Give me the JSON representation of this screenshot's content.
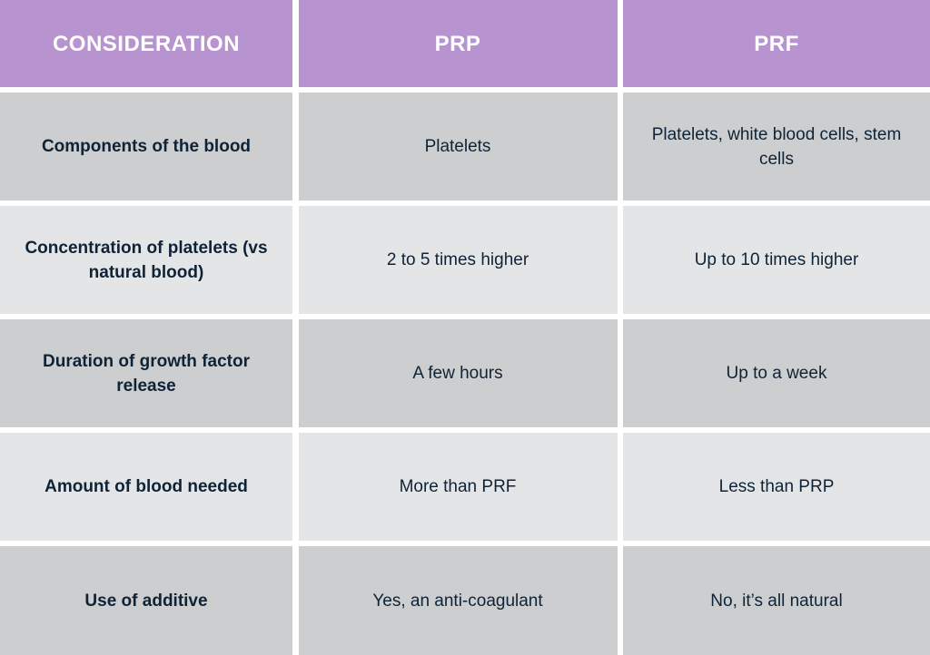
{
  "header": {
    "columns": [
      "CONSIDERATION",
      "PRP",
      "PRF"
    ]
  },
  "colors": {
    "header_bg": "#b793d0",
    "header_text": "#ffffff",
    "row_dark_bg": "#cdcecf",
    "row_light_bg": "#e4e5e7",
    "body_text": "#0f2337",
    "grid_lines": "#ffffff"
  },
  "rows": [
    {
      "consideration": "Components of the blood",
      "prp": "Platelets",
      "prf": "Platelets, white blood cells, stem cells"
    },
    {
      "consideration": "Concentration of platelets (vs natural blood)",
      "prp": "2 to 5 times higher",
      "prf": "Up to 10 times higher"
    },
    {
      "consideration": "Duration of growth factor release",
      "prp": "A few hours",
      "prf": "Up to a week"
    },
    {
      "consideration": "Amount of blood needed",
      "prp": "More than PRF",
      "prf": "Less than PRP"
    },
    {
      "consideration": "Use of additive",
      "prp": "Yes, an anti-coagulant",
      "prf": "No, it’s all natural"
    }
  ]
}
